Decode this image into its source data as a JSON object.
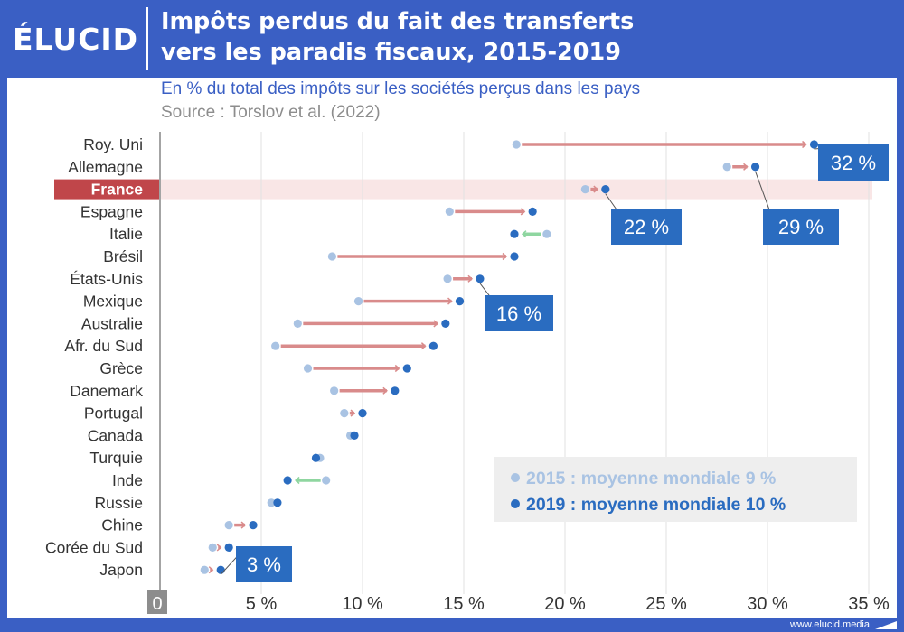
{
  "brand": {
    "logo": "ÉLUCID",
    "url": "www.elucid.media"
  },
  "header": {
    "title_line1": "Impôts perdus du fait des transferts",
    "title_line2": "vers les paradis fiscaux, 2015-2019"
  },
  "subtitle": "En % du total des impôts sur les sociétés perçus dans les pays",
  "source": "Source : Torslov et al. (2022)",
  "colors": {
    "brand_blue": "#3a5fc4",
    "dot_2015": "#a9c3e3",
    "dot_2019": "#2a6cc0",
    "arrow_increase": "#d98b8b",
    "arrow_decrease": "#8fd6a0",
    "highlight_row": "#f9e6e6",
    "highlight_label": "#c0464a",
    "callout": "#2a6cc0",
    "axis_label_bg": "#8d8d8d"
  },
  "chart_data": {
    "type": "dumbbell",
    "x_unit": "%",
    "xlim": [
      0,
      35
    ],
    "x_ticks": [
      0,
      5,
      10,
      15,
      20,
      25,
      30,
      35
    ],
    "x_tick_labels": [
      "0",
      "5 %",
      "10 %",
      "15 %",
      "20 %",
      "25 %",
      "30 %",
      "35 %"
    ],
    "highlight_category": "France",
    "series": [
      {
        "name": "2015 : moyenne mondiale 9 %",
        "year": 2015
      },
      {
        "name": "2019 : moyenne mondiale 10 %",
        "year": 2019
      }
    ],
    "rows": [
      {
        "country": "Roy. Uni",
        "v2015": 17.6,
        "v2019": 32.3
      },
      {
        "country": "Allemagne",
        "v2015": 28.0,
        "v2019": 29.4
      },
      {
        "country": "France",
        "v2015": 21.0,
        "v2019": 22.0
      },
      {
        "country": "Espagne",
        "v2015": 14.3,
        "v2019": 18.4
      },
      {
        "country": "Italie",
        "v2015": 19.1,
        "v2019": 17.5
      },
      {
        "country": "Brésil",
        "v2015": 8.5,
        "v2019": 17.5
      },
      {
        "country": "États-Unis",
        "v2015": 14.2,
        "v2019": 15.8
      },
      {
        "country": "Mexique",
        "v2015": 9.8,
        "v2019": 14.8
      },
      {
        "country": "Australie",
        "v2015": 6.8,
        "v2019": 14.1
      },
      {
        "country": "Afr. du Sud",
        "v2015": 5.7,
        "v2019": 13.5
      },
      {
        "country": "Grèce",
        "v2015": 7.3,
        "v2019": 12.2
      },
      {
        "country": "Danemark",
        "v2015": 8.6,
        "v2019": 11.6
      },
      {
        "country": "Portugal",
        "v2015": 9.1,
        "v2019": 10.0
      },
      {
        "country": "Canada",
        "v2015": 9.4,
        "v2019": 9.6
      },
      {
        "country": "Turquie",
        "v2015": 7.9,
        "v2019": 7.7
      },
      {
        "country": "Inde",
        "v2015": 8.2,
        "v2019": 6.3
      },
      {
        "country": "Russie",
        "v2015": 5.5,
        "v2019": 5.8
      },
      {
        "country": "Chine",
        "v2015": 3.4,
        "v2019": 4.6
      },
      {
        "country": "Corée du Sud",
        "v2015": 2.6,
        "v2019": 3.4
      },
      {
        "country": "Japon",
        "v2015": 2.2,
        "v2019": 3.0
      }
    ],
    "callouts": [
      {
        "text": "32 %",
        "country": "Roy. Uni"
      },
      {
        "text": "29 %",
        "country": "Allemagne"
      },
      {
        "text": "22 %",
        "country": "France"
      },
      {
        "text": "16 %",
        "country": "États-Unis"
      },
      {
        "text": "3 %",
        "country": "Japon"
      }
    ]
  }
}
